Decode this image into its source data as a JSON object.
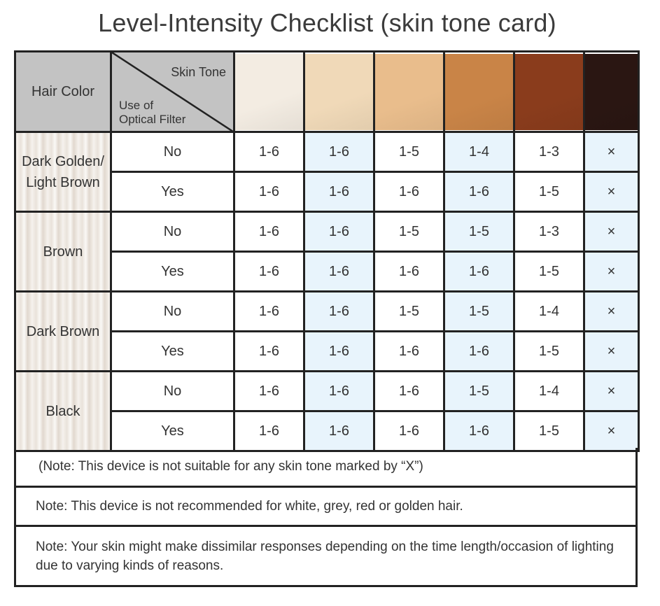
{
  "title": "Level-Intensity Checklist (skin tone card)",
  "header": {
    "hair_color": "Hair Color",
    "skin_tone": "Skin Tone",
    "filter_line1": "Use of",
    "filter_line2": "Optical Filter"
  },
  "skin_tone_colors": [
    "#f3ece2",
    "#f0d9b8",
    "#e9bd8c",
    "#c98447",
    "#8a3c1c",
    "#2a1612"
  ],
  "groups": [
    {
      "hair": "Dark Golden/ Light Brown",
      "rows": [
        {
          "filter": "No",
          "values": [
            "1-6",
            "1-6",
            "1-5",
            "1-4",
            "1-3",
            "×"
          ]
        },
        {
          "filter": "Yes",
          "values": [
            "1-6",
            "1-6",
            "1-6",
            "1-6",
            "1-5",
            "×"
          ]
        }
      ]
    },
    {
      "hair": "Brown",
      "rows": [
        {
          "filter": "No",
          "values": [
            "1-6",
            "1-6",
            "1-5",
            "1-5",
            "1-3",
            "×"
          ]
        },
        {
          "filter": "Yes",
          "values": [
            "1-6",
            "1-6",
            "1-6",
            "1-6",
            "1-5",
            "×"
          ]
        }
      ]
    },
    {
      "hair": "Dark Brown",
      "rows": [
        {
          "filter": "No",
          "values": [
            "1-6",
            "1-6",
            "1-5",
            "1-5",
            "1-4",
            "×"
          ]
        },
        {
          "filter": "Yes",
          "values": [
            "1-6",
            "1-6",
            "1-6",
            "1-6",
            "1-5",
            "×"
          ]
        }
      ]
    },
    {
      "hair": "Black",
      "rows": [
        {
          "filter": "No",
          "values": [
            "1-6",
            "1-6",
            "1-6",
            "1-5",
            "1-4",
            "×"
          ]
        },
        {
          "filter": "Yes",
          "values": [
            "1-6",
            "1-6",
            "1-6",
            "1-6",
            "1-5",
            "×"
          ]
        }
      ]
    }
  ],
  "notes": [
    "(Note: This device is not suitable for any skin tone marked by “X”)",
    "Note: This device is not recommended for white, grey, red or golden hair.",
    "Note: Your skin might make dissimilar responses depending on the time length/occasion of lighting due to varying kinds of reasons."
  ]
}
